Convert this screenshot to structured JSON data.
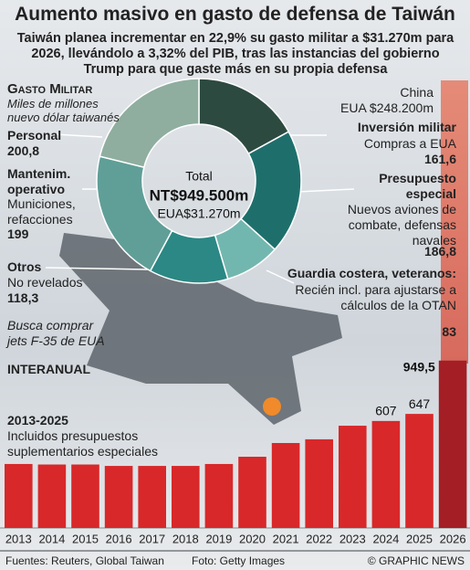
{
  "header": {
    "title": "Aumento masivo en gasto de defensa de Taiwán",
    "subtitle": "Taiwán planea incrementar en 22,9% su gasto militar a $31.270m para 2026, llevándolo a 3,32% del PIB, tras las instancias del gobierno Trump para que gaste más en su propia defensa"
  },
  "chart_data": [
    {
      "type": "donut",
      "title": "Gasto Militar",
      "subtitle": "Miles de millones nuevo dólar taiwanés",
      "categories": [
        "Inversión militar",
        "Presupuesto especial",
        "Guardia costera, veteranos:",
        "Otros",
        "Mantenim. operativo",
        "Personal"
      ],
      "descriptions": [
        "Compras a EUA",
        "Nuevos aviones de combate, defensas navales",
        "Recién incl. para ajustarse a cálculos de la OTAN",
        "No revelados",
        "Municiones, refacciones",
        null
      ],
      "values": [
        161.6,
        186.8,
        83,
        118.3,
        199,
        200.8
      ],
      "value_labels": [
        "161,6",
        "186,8",
        "83",
        "118,3",
        "199",
        "200,8"
      ],
      "colors": [
        "#2d4a40",
        "#1e6f6c",
        "#72b7af",
        "#2b8884",
        "#5f9f97",
        "#8fae9f"
      ],
      "center_labels": [
        "Total",
        "NT$949.500m",
        "EUA$31.270m"
      ],
      "annotations": [
        "Busca comprar jets F-35 de EUA",
        "China",
        "EUA $248.200m"
      ]
    },
    {
      "type": "bar",
      "title": "INTERANUAL",
      "subtitle": "2013-2025",
      "note": "Incluidos presupuestos suplementarios especiales",
      "categories": [
        "2013",
        "2014",
        "2015",
        "2016",
        "2017",
        "2018",
        "2019",
        "2020",
        "2021",
        "2022",
        "2023",
        "2024",
        "2025",
        "2026"
      ],
      "values": [
        363,
        360,
        360,
        352,
        352,
        352,
        363,
        404,
        482,
        503,
        580,
        607,
        647,
        949.5
      ],
      "value_labels": [
        null,
        null,
        null,
        null,
        null,
        null,
        null,
        null,
        null,
        null,
        null,
        "607",
        "647",
        "949,5"
      ],
      "colors": [
        "#d8282a",
        "#d8282a",
        "#d8282a",
        "#d8282a",
        "#d8282a",
        "#d8282a",
        "#d8282a",
        "#d8282a",
        "#d8282a",
        "#d8282a",
        "#d8282a",
        "#d8282a",
        "#d8282a",
        "#a31e25"
      ],
      "ylim": [
        0,
        1000
      ]
    }
  ],
  "footer": {
    "source": "Fuentes: Reuters, Global Taiwan",
    "photo": "Foto: Getty Images",
    "credit": "© GRAPHIC NEWS"
  }
}
